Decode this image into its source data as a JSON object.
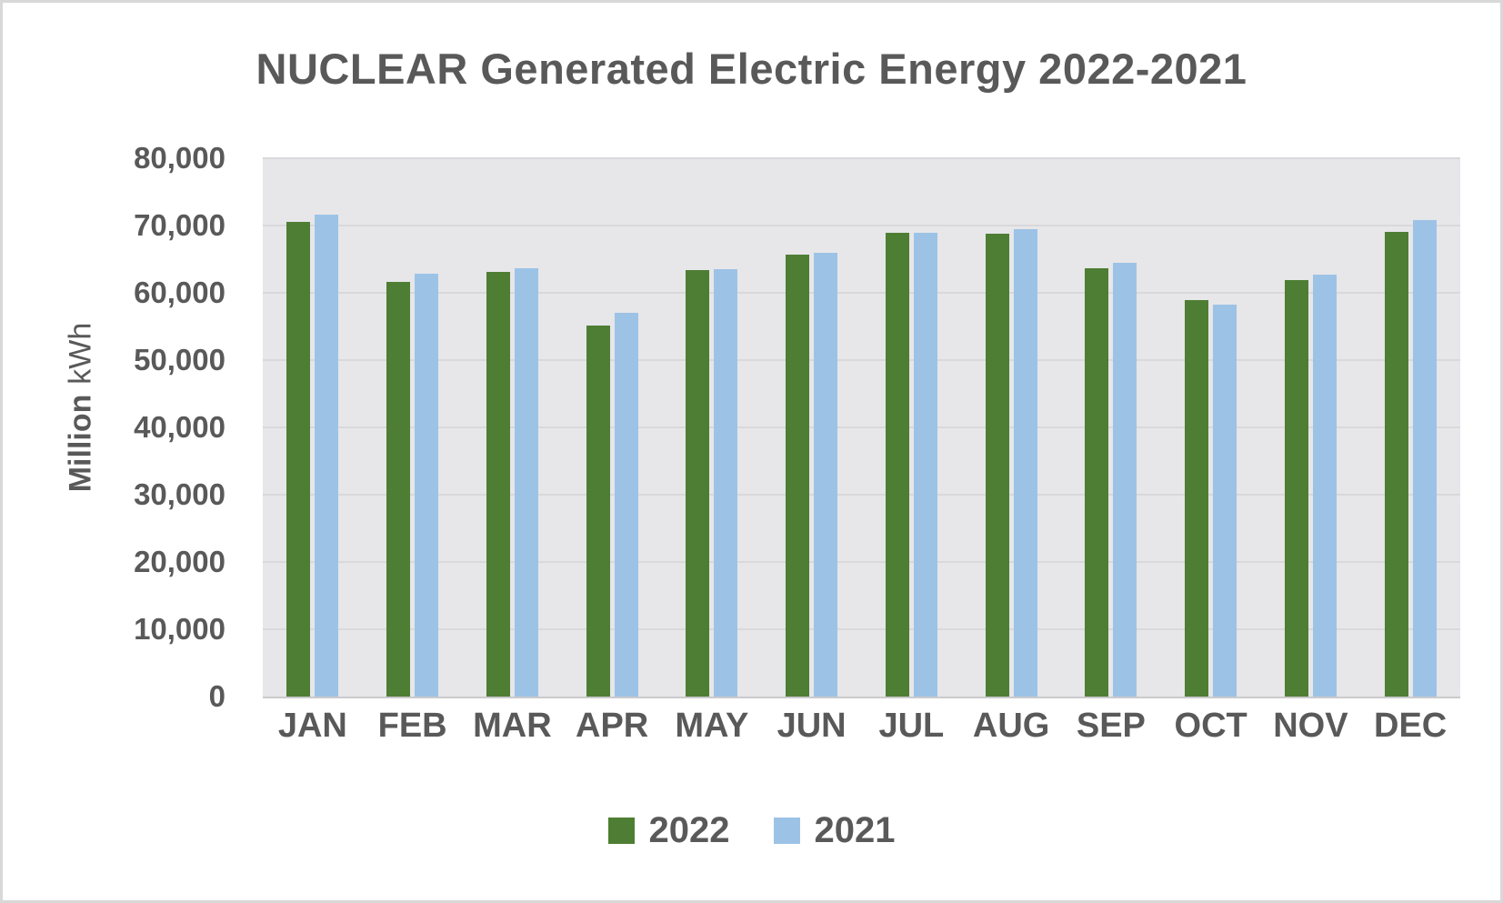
{
  "chart_data": {
    "type": "bar",
    "title": "NUCLEAR Generated Electric Energy 2022-2021",
    "xlabel": "",
    "ylabel": "Million kWh",
    "ylabel_bold": "Million",
    "ylabel_regular": "kWh",
    "categories": [
      "JAN",
      "FEB",
      "MAR",
      "APR",
      "MAY",
      "JUN",
      "JUL",
      "AUG",
      "SEP",
      "OCT",
      "NOV",
      "DEC"
    ],
    "series": [
      {
        "name": "2022",
        "color": "#4e7e33",
        "values": [
          70500,
          61600,
          63100,
          55200,
          63400,
          65700,
          68900,
          68800,
          63600,
          58900,
          61900,
          69000
        ]
      },
      {
        "name": "2021",
        "color": "#9cc3e6",
        "values": [
          71600,
          62800,
          63600,
          57000,
          63500,
          66000,
          68900,
          69500,
          64500,
          58300,
          62700,
          70800
        ]
      }
    ],
    "ylim": [
      0,
      80000
    ],
    "ytick_step": 10000,
    "ytick_labels": [
      "0",
      "10,000",
      "20,000",
      "30,000",
      "40,000",
      "50,000",
      "60,000",
      "70,000",
      "80,000"
    ],
    "grid": true,
    "legend_position": "bottom",
    "colors": {
      "plot_background": "#e7e6e9",
      "gridline": "#d9d8da",
      "axis_line": "#cbcacd",
      "text": "#595959",
      "series_2022": "#4e7e33",
      "series_2021": "#9cc3e6"
    }
  }
}
